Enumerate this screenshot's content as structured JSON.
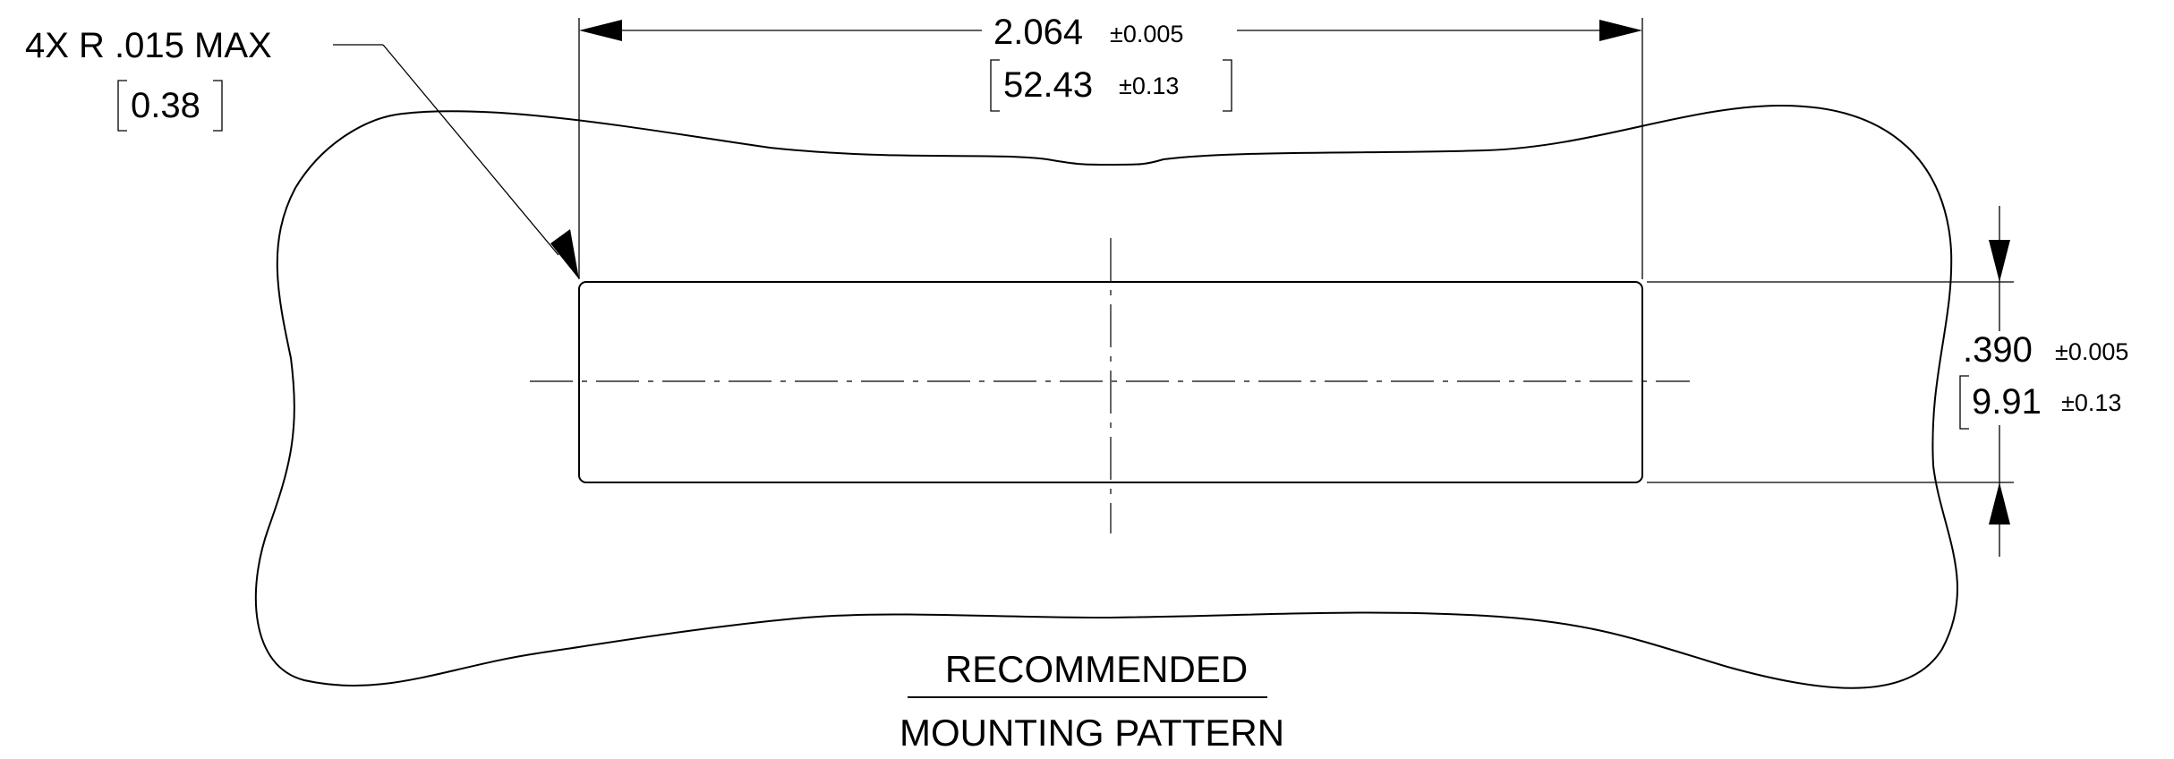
{
  "radius_callout": {
    "label": "4X R .015  MAX",
    "metric": "0.38"
  },
  "width_dimension": {
    "nominal": "2.064",
    "tolerance": "±0.005",
    "metric_nominal": "52.43",
    "metric_tolerance": "±0.13"
  },
  "height_dimension": {
    "nominal": ".390",
    "tolerance": "±0.005",
    "metric_nominal": "9.91",
    "metric_tolerance": "±0.13"
  },
  "caption": {
    "line1": "RECOMMENDED",
    "line2": "MOUNTING PATTERN"
  }
}
